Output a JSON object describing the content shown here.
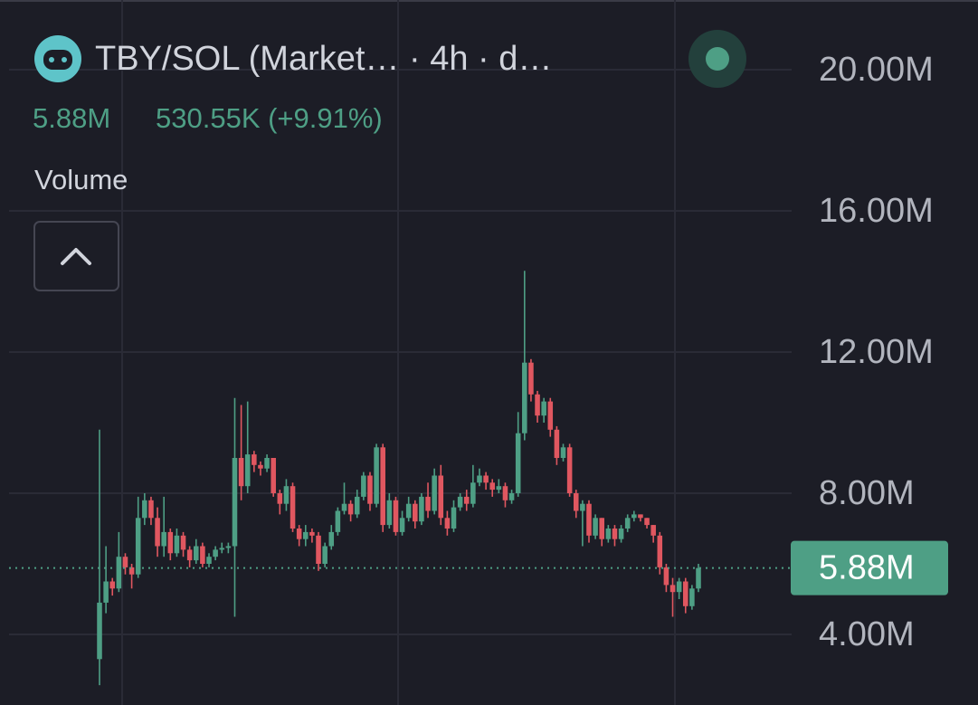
{
  "chart_data": {
    "type": "candlestick",
    "title": "TBY/SOL (Market… · 4h · d…",
    "price_text": "5.88M",
    "change_text": "530.55K (+9.91%)",
    "indicator": "Volume",
    "up_color": "#4e9f85",
    "down_color": "#e05760",
    "grid": true,
    "ylim": [
      2,
      22
    ],
    "yticks": [
      {
        "value": 4,
        "label": "4.00M"
      },
      {
        "value": 8,
        "label": "8.00M"
      },
      {
        "value": 12,
        "label": "12.00M"
      },
      {
        "value": 16,
        "label": "16.00M"
      },
      {
        "value": 20,
        "label": "20.00M"
      }
    ],
    "price_line": {
      "value": 5.88,
      "label": "5.88M"
    },
    "open": [
      3.3,
      4.9,
      5.5,
      5.3,
      6.2,
      5.9,
      5.7,
      7.3,
      7.8,
      7.3,
      6.5,
      6.9,
      6.3,
      6.8,
      6.4,
      6.1,
      6.5,
      6.0,
      6.2,
      6.4,
      6.45,
      6.5,
      9.0,
      8.2,
      9.1,
      8.8,
      8.7,
      9.0,
      8.0,
      7.7,
      8.2,
      7.0,
      6.7,
      6.9,
      6.8,
      6.0,
      6.5,
      6.9,
      7.5,
      7.7,
      7.4,
      7.9,
      8.5,
      7.7,
      9.3,
      7.1,
      7.8,
      6.9,
      7.3,
      7.7,
      7.2,
      7.9,
      7.5,
      8.5,
      7.3,
      7.0,
      7.6,
      7.9,
      7.7,
      8.3,
      8.5,
      8.3,
      8.1,
      8.2,
      7.8,
      8.0,
      9.7,
      11.7,
      10.8,
      10.2,
      10.6,
      9.8,
      9.0,
      9.3,
      8.0,
      7.5,
      7.7,
      6.8,
      7.3,
      6.7,
      7.0,
      6.7,
      7.0,
      7.3,
      7.4,
      7.3,
      7.1,
      6.8,
      5.9,
      5.4,
      5.2,
      5.5,
      4.8,
      5.3
    ],
    "high": [
      9.8,
      6.5,
      5.6,
      6.9,
      6.3,
      6.0,
      7.9,
      8.0,
      7.9,
      7.6,
      7.9,
      7.0,
      7.0,
      6.9,
      6.5,
      6.7,
      6.6,
      6.3,
      6.5,
      6.6,
      6.6,
      10.7,
      10.5,
      10.6,
      9.2,
      8.9,
      9.1,
      9.0,
      8.1,
      8.4,
      8.3,
      7.1,
      7.1,
      7.0,
      6.9,
      6.6,
      7.1,
      7.6,
      8.3,
      7.8,
      8.1,
      8.6,
      8.6,
      9.4,
      9.4,
      8.0,
      7.9,
      7.5,
      7.9,
      7.8,
      8.0,
      8.3,
      8.7,
      8.8,
      7.5,
      7.8,
      8.0,
      8.1,
      8.8,
      8.7,
      8.6,
      8.4,
      8.4,
      8.3,
      8.1,
      10.3,
      14.3,
      11.8,
      10.9,
      10.7,
      10.7,
      9.9,
      9.4,
      9.4,
      8.1,
      7.8,
      7.8,
      7.4,
      7.3,
      7.1,
      7.1,
      7.1,
      7.4,
      7.5,
      7.4,
      7.3,
      7.1,
      6.9,
      6.0,
      5.6,
      5.6,
      5.6,
      5.4,
      6.0
    ],
    "low": [
      2.56,
      4.6,
      5.1,
      5.2,
      5.7,
      5.3,
      5.6,
      7.1,
      7.1,
      6.2,
      6.2,
      6.1,
      6.2,
      6.2,
      5.9,
      6.0,
      5.9,
      5.9,
      6.1,
      6.3,
      6.3,
      4.5,
      7.8,
      8.0,
      8.6,
      8.5,
      8.6,
      7.9,
      7.4,
      7.5,
      6.9,
      6.5,
      6.5,
      6.6,
      5.8,
      5.9,
      6.4,
      6.8,
      7.4,
      7.2,
      7.3,
      7.8,
      7.5,
      7.6,
      6.9,
      7.0,
      6.8,
      6.8,
      7.2,
      7.0,
      7.1,
      7.3,
      7.4,
      7.1,
      6.8,
      6.9,
      7.5,
      7.5,
      7.6,
      8.2,
      8.1,
      7.9,
      8.0,
      7.6,
      7.7,
      7.9,
      9.5,
      10.6,
      10.0,
      10.0,
      9.6,
      8.8,
      8.9,
      7.9,
      7.3,
      6.5,
      6.6,
      6.7,
      6.5,
      6.6,
      6.5,
      6.6,
      6.9,
      7.2,
      7.2,
      7.0,
      6.6,
      5.7,
      5.2,
      4.5,
      5.0,
      4.6,
      4.7,
      5.2
    ],
    "close": [
      4.9,
      5.5,
      5.3,
      6.2,
      5.9,
      5.7,
      7.3,
      7.8,
      7.3,
      6.5,
      6.9,
      6.3,
      6.8,
      6.4,
      6.1,
      6.5,
      6.0,
      6.2,
      6.4,
      6.45,
      6.5,
      9.0,
      8.2,
      9.1,
      8.8,
      8.7,
      9.0,
      8.0,
      7.7,
      8.2,
      7.0,
      6.7,
      6.9,
      6.8,
      6.0,
      6.5,
      6.9,
      7.5,
      7.7,
      7.4,
      7.9,
      8.5,
      7.7,
      9.3,
      7.1,
      7.8,
      6.9,
      7.3,
      7.7,
      7.2,
      7.9,
      7.5,
      8.5,
      7.3,
      7.0,
      7.6,
      7.9,
      7.7,
      8.3,
      8.5,
      8.3,
      8.1,
      8.2,
      7.8,
      8.0,
      9.7,
      11.7,
      10.8,
      10.2,
      10.6,
      9.8,
      9.0,
      9.3,
      8.0,
      7.5,
      7.7,
      6.8,
      7.3,
      6.7,
      7.0,
      6.7,
      7.0,
      7.3,
      7.4,
      7.3,
      7.1,
      6.8,
      5.9,
      5.4,
      5.2,
      5.5,
      4.8,
      5.3,
      5.88
    ]
  }
}
